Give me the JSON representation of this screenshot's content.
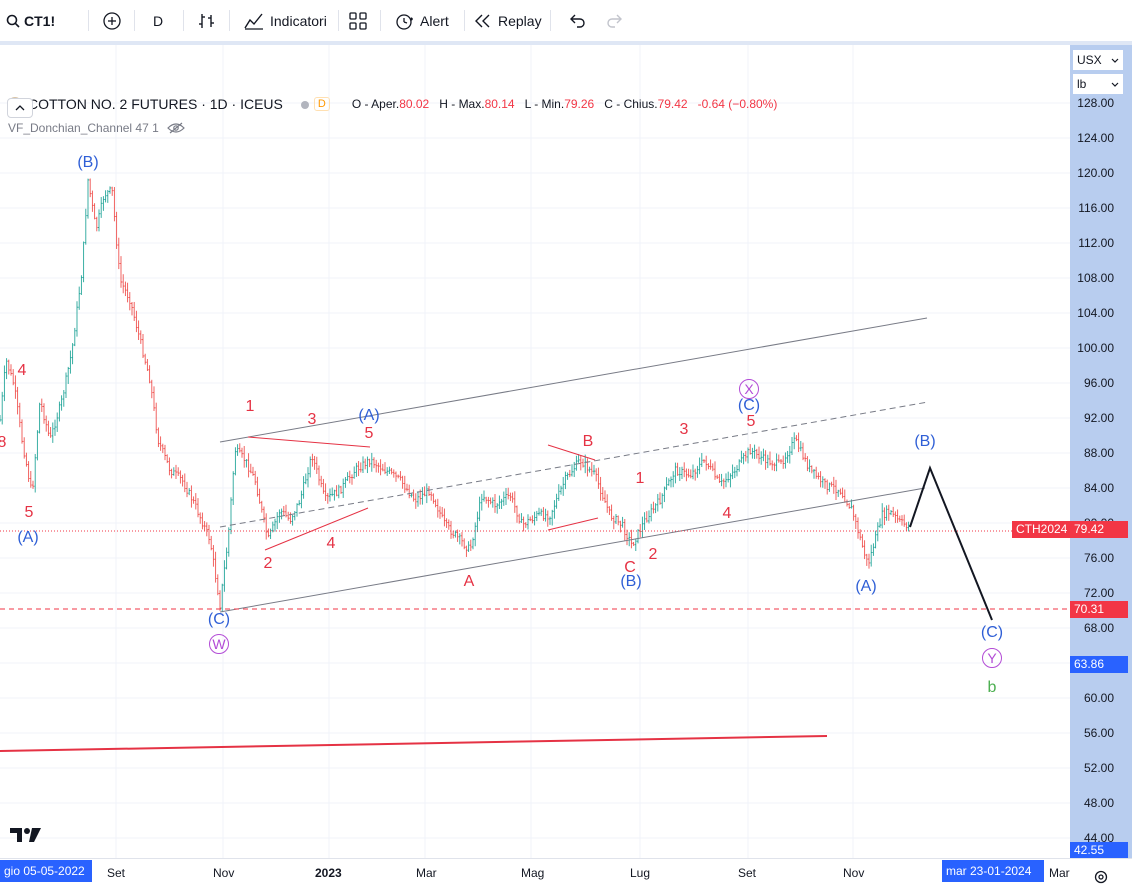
{
  "toolbar": {
    "symbol": "CT1!",
    "interval": "D",
    "indicators_label": "Indicatori",
    "alert_label": "Alert",
    "replay_label": "Replay"
  },
  "legend": {
    "title": "COTTON NO. 2 FUTURES · 1D · ICEUS",
    "badge": "D",
    "o_label": "O - Aper.",
    "o_val": "80.02",
    "h_label": "H - Max.",
    "h_val": "80.14",
    "l_label": "L - Min.",
    "l_val": "79.26",
    "c_label": "C - Chius.",
    "c_val": "79.42",
    "change": "-0.64 (−0.80%)"
  },
  "indicator": {
    "name": "VF_Donchian_Channel 47 1"
  },
  "price_axis": {
    "currency": "USX",
    "unit": "lb",
    "ticks": [
      "128.00",
      "124.00",
      "120.00",
      "116.00",
      "112.00",
      "108.00",
      "104.00",
      "100.00",
      "96.00",
      "92.00",
      "88.00",
      "84.00",
      "80.00",
      "76.00",
      "72.00",
      "68.00",
      "64.00",
      "60.00",
      "56.00",
      "52.00",
      "48.00",
      "44.00"
    ],
    "bottom_label": "42.55"
  },
  "price_tags": {
    "contract": "CTH2024",
    "last": "79.42",
    "level1": "70.31",
    "level2": "63.86"
  },
  "time_axis": {
    "start_label": "gio 05-05-2022",
    "labels": [
      "Set",
      "Nov",
      "2023",
      "Mar",
      "Mag",
      "Lug",
      "Set",
      "Nov"
    ],
    "cursor_label": "mar 23-01-2024",
    "end_label": "Mar"
  },
  "wave_labels": {
    "red": [
      "4",
      "5",
      "1",
      "3",
      "5",
      "2",
      "4",
      "A",
      "B",
      "1",
      "3",
      "5",
      "4",
      "C",
      "2",
      "8"
    ],
    "blue": [
      "(B)",
      "(A)",
      "(A)",
      "(C)",
      "(C)",
      "(B)",
      "(A)",
      "(B)",
      "(C)"
    ],
    "purple": [
      "W",
      "X",
      "Y"
    ],
    "green": [
      "b"
    ]
  },
  "colors": {
    "up": "#26a69a",
    "down": "#ef5350",
    "wave_red": "#e53244",
    "wave_blue": "#2f5fd6",
    "wave_purple": "#b34cd6",
    "axis_bg": "#b8cdef",
    "tag_red": "#f23645"
  }
}
